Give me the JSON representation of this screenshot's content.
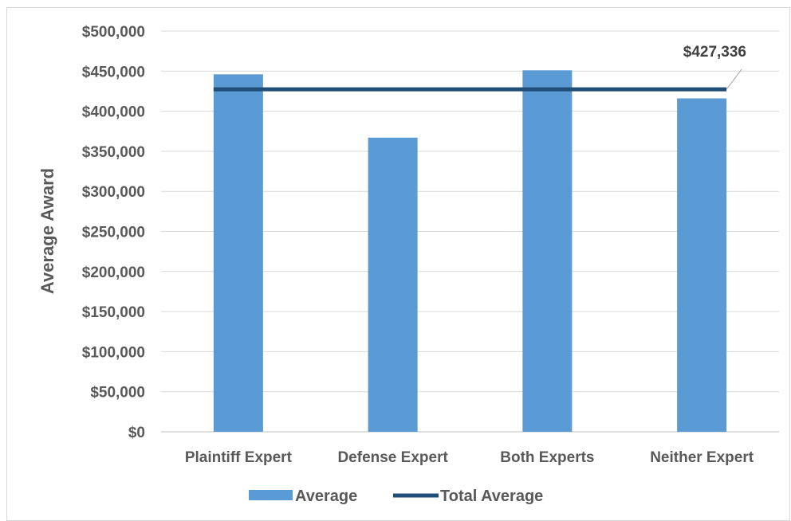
{
  "chart_data": {
    "type": "bar",
    "title": "",
    "xlabel": "",
    "ylabel": "Average Award",
    "categories": [
      "Plaintiff Expert",
      "Defense Expert",
      "Both Experts",
      "Neither Expert"
    ],
    "series": [
      {
        "name": "Average",
        "type": "bar",
        "values": [
          446000,
          367000,
          451000,
          416000
        ],
        "color": "#5b9bd5"
      },
      {
        "name": "Total Average",
        "type": "line",
        "values": [
          427336,
          427336,
          427336,
          427336
        ],
        "color": "#1f4e79"
      }
    ],
    "ylim": [
      0,
      500000
    ],
    "yticks": [
      0,
      50000,
      100000,
      150000,
      200000,
      250000,
      300000,
      350000,
      400000,
      450000,
      500000
    ],
    "ytick_labels": [
      "$0",
      "$50,000",
      "$100,000",
      "$150,000",
      "$200,000",
      "$250,000",
      "$300,000",
      "$350,000",
      "$400,000",
      "$450,000",
      "$500,000"
    ],
    "grid": true,
    "legend": "bottom",
    "annotation": {
      "text": "$427,336",
      "series": "Total Average"
    }
  }
}
